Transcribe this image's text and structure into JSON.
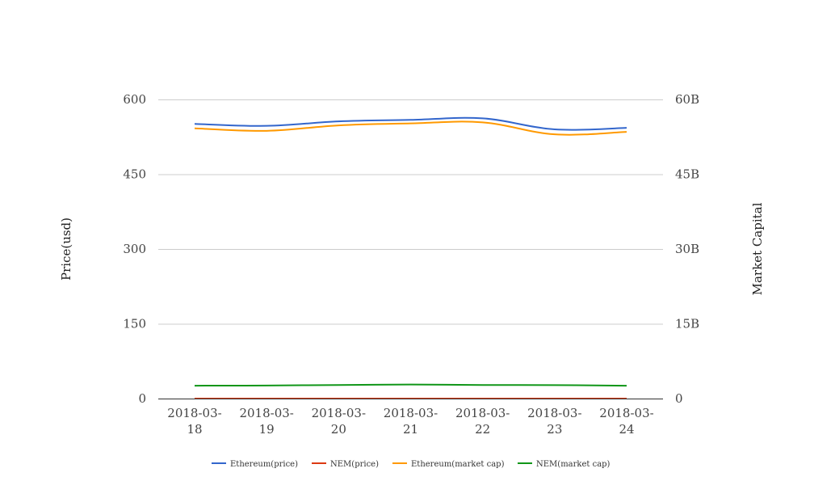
{
  "chart_data": {
    "type": "line",
    "title": "",
    "x": [
      "2018-03-18",
      "2018-03-19",
      "2018-03-20",
      "2018-03-21",
      "2018-03-22",
      "2018-03-23",
      "2018-03-24"
    ],
    "x_tick_labels": [
      [
        "2018-03-",
        "18"
      ],
      [
        "2018-03-",
        "19"
      ],
      [
        "2018-03-",
        "20"
      ],
      [
        "2018-03-",
        "21"
      ],
      [
        "2018-03-",
        "22"
      ],
      [
        "2018-03-",
        "23"
      ],
      [
        "2018-03-",
        "24"
      ]
    ],
    "ylabel_left": "Price(usd)",
    "ylabel_right": "Market Capital",
    "ylim_left": [
      0,
      600
    ],
    "ylim_right": [
      0,
      60000000000
    ],
    "yticks_left": [
      "0",
      "150",
      "300",
      "450",
      "600"
    ],
    "yticks_right": [
      "0",
      "15B",
      "30B",
      "45B",
      "60B"
    ],
    "grid": true,
    "legend_position": "bottom",
    "series": [
      {
        "name": "Ethereum(price)",
        "axis": "left",
        "color": "#3366cc",
        "values": [
          551,
          547,
          556,
          559,
          562,
          540,
          543
        ]
      },
      {
        "name": "NEM(price)",
        "axis": "right",
        "color": "#dc3912",
        "values": [
          0.3,
          0.3,
          0.3,
          0.32,
          0.3,
          0.3,
          0.29
        ]
      },
      {
        "name": "Ethereum(market cap)",
        "axis": "right",
        "color": "#ff9900",
        "values": [
          54200000000,
          53700000000,
          54800000000,
          55200000000,
          55400000000,
          53000000000,
          53500000000
        ]
      },
      {
        "name": "NEM(market cap)",
        "axis": "right",
        "color": "#109618",
        "values": [
          2580000000,
          2620000000,
          2720000000,
          2820000000,
          2720000000,
          2700000000,
          2580000000
        ]
      }
    ]
  }
}
